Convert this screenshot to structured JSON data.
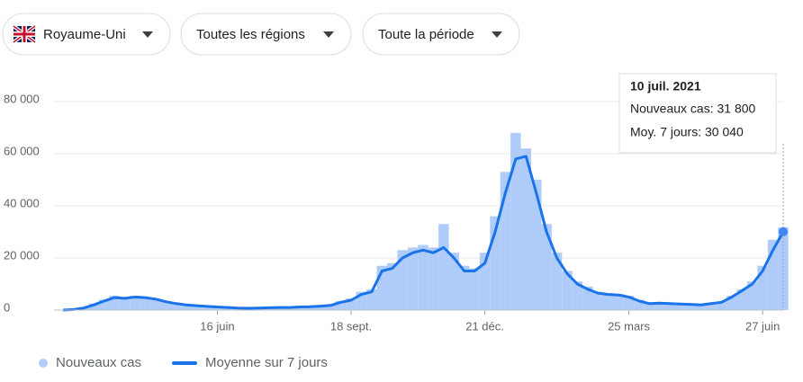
{
  "filters": [
    "Royaume-Uni",
    "Toutes les régions",
    "Toute la période"
  ],
  "tooltip": {
    "date": "10 juil. 2021",
    "cases": "Nouveaux cas: 31 800",
    "average": "Moy. 7 jours: 30 040"
  },
  "chart_data": {
    "type": "combo",
    "categories": [
      null,
      null,
      null,
      null,
      null,
      null,
      null,
      null,
      null,
      null,
      null,
      null,
      null,
      null,
      null,
      "16 juin",
      null,
      null,
      null,
      null,
      null,
      null,
      null,
      null,
      null,
      null,
      null,
      null,
      "18 sept.",
      null,
      null,
      null,
      null,
      null,
      null,
      null,
      null,
      null,
      null,
      null,
      null,
      "21 déc.",
      null,
      null,
      null,
      null,
      null,
      null,
      null,
      null,
      null,
      null,
      null,
      null,
      null,
      "25 mars",
      null,
      null,
      null,
      null,
      null,
      null,
      null,
      null,
      null,
      null,
      null,
      null,
      "27 juin",
      null,
      null
    ],
    "series": [
      {
        "name": "Nouveaux cas",
        "kind": "bar",
        "color": "#aecbfa",
        "values": [
          0,
          300,
          1000,
          2500,
          4000,
          5500,
          5000,
          5500,
          5000,
          4500,
          3500,
          2700,
          2200,
          1800,
          1500,
          1300,
          1100,
          900,
          800,
          900,
          1000,
          1100,
          1100,
          1300,
          1500,
          1700,
          2200,
          3500,
          4500,
          7000,
          8000,
          17000,
          18000,
          23000,
          24000,
          25000,
          24000,
          33000,
          22000,
          17000,
          16000,
          22000,
          36000,
          53000,
          68000,
          62000,
          50000,
          33000,
          22000,
          15000,
          11000,
          9000,
          7000,
          6500,
          6200,
          5500,
          4000,
          2800,
          3000,
          2800,
          2500,
          2400,
          2200,
          2800,
          3300,
          5500,
          8000,
          11000,
          17000,
          27000,
          31800
        ]
      },
      {
        "name": "Moyenne sur 7 jours",
        "kind": "line",
        "color": "#1a73e8",
        "values": [
          0,
          200,
          800,
          2000,
          3500,
          4800,
          4500,
          5000,
          4800,
          4200,
          3200,
          2500,
          2000,
          1700,
          1400,
          1200,
          1000,
          800,
          700,
          800,
          900,
          1000,
          1000,
          1200,
          1300,
          1500,
          1800,
          3000,
          3800,
          6000,
          7000,
          15000,
          16000,
          20000,
          22000,
          23000,
          22000,
          24000,
          20000,
          15000,
          15000,
          18000,
          30000,
          45000,
          58000,
          59000,
          45000,
          30000,
          20000,
          14000,
          10000,
          8000,
          6500,
          6000,
          5800,
          5000,
          3500,
          2500,
          2700,
          2500,
          2300,
          2200,
          2000,
          2500,
          3000,
          5000,
          7500,
          10000,
          15000,
          23000,
          30040
        ]
      }
    ],
    "ylim": [
      0,
      80000
    ],
    "yticks": [
      0,
      {
        "value": 20000,
        "label": "20 000"
      },
      {
        "value": 40000,
        "label": "40 000"
      },
      {
        "value": 60000,
        "label": "60 000"
      },
      {
        "value": 80000,
        "label": "80 000"
      }
    ],
    "grid": true
  }
}
